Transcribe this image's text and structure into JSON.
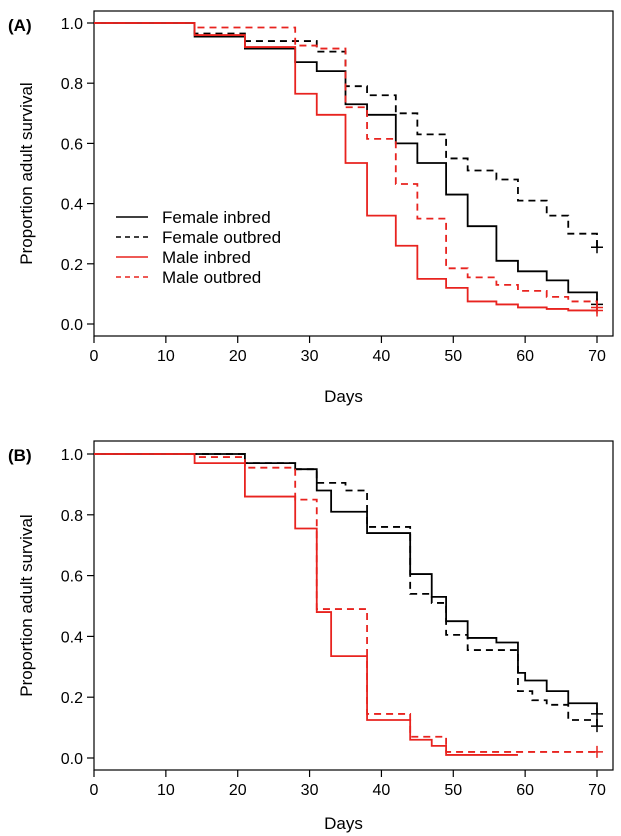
{
  "colors": {
    "inbred": "#000000",
    "outbred_black": "#000000",
    "male": "#e8231f"
  },
  "chart_data": [
    {
      "type": "line",
      "step": true,
      "panel_label": "(A)",
      "xlabel": "Days",
      "ylabel": "Proportion adult survival",
      "xlim": [
        0,
        73
      ],
      "ylim": [
        0,
        1
      ],
      "xticks": [
        "0",
        "10",
        "20",
        "30",
        "40",
        "50",
        "60",
        "70"
      ],
      "yticks": [
        "0.0",
        "0.2",
        "0.4",
        "0.6",
        "0.8",
        "1.0"
      ],
      "legend_position": "left",
      "series": [
        {
          "name": "Female inbred",
          "color": "#000000",
          "dash": false,
          "x": [
            0,
            14,
            21,
            28,
            31,
            35,
            38,
            42,
            45,
            49,
            52,
            56,
            59,
            63,
            66,
            70
          ],
          "y": [
            1.0,
            0.955,
            0.915,
            0.87,
            0.84,
            0.73,
            0.695,
            0.6,
            0.535,
            0.43,
            0.325,
            0.21,
            0.175,
            0.145,
            0.105,
            0.065
          ],
          "censor": [
            [
              70,
              0.065
            ]
          ]
        },
        {
          "name": "Female outbred",
          "color": "#000000",
          "dash": true,
          "x": [
            0,
            14,
            21,
            28,
            31,
            35,
            38,
            42,
            45,
            49,
            52,
            56,
            59,
            63,
            66,
            70
          ],
          "y": [
            1.0,
            0.965,
            0.94,
            0.94,
            0.905,
            0.79,
            0.76,
            0.7,
            0.63,
            0.55,
            0.51,
            0.48,
            0.41,
            0.36,
            0.3,
            0.255
          ],
          "censor": [
            [
              70,
              0.255
            ]
          ]
        },
        {
          "name": "Male inbred",
          "color": "#e8231f",
          "dash": false,
          "x": [
            0,
            14,
            21,
            28,
            31,
            35,
            38,
            42,
            45,
            49,
            52,
            56,
            59,
            63,
            66,
            70
          ],
          "y": [
            1.0,
            0.96,
            0.92,
            0.765,
            0.695,
            0.535,
            0.36,
            0.26,
            0.15,
            0.12,
            0.075,
            0.065,
            0.055,
            0.05,
            0.045,
            0.045
          ],
          "censor": [
            [
              70,
              0.045
            ]
          ]
        },
        {
          "name": "Male outbred",
          "color": "#e8231f",
          "dash": true,
          "x": [
            0,
            14,
            21,
            28,
            31,
            35,
            38,
            42,
            45,
            49,
            52,
            56,
            59,
            63,
            66,
            70
          ],
          "y": [
            1.0,
            0.985,
            0.985,
            0.925,
            0.915,
            0.72,
            0.615,
            0.465,
            0.35,
            0.185,
            0.155,
            0.13,
            0.11,
            0.09,
            0.075,
            0.055
          ],
          "censor": [
            [
              70,
              0.055
            ]
          ]
        }
      ]
    },
    {
      "type": "line",
      "step": true,
      "panel_label": "(B)",
      "xlabel": "Days",
      "ylabel": "Proportion adult survival",
      "xlim": [
        0,
        73
      ],
      "ylim": [
        0,
        1
      ],
      "xticks": [
        "0",
        "10",
        "20",
        "30",
        "40",
        "50",
        "60",
        "70"
      ],
      "yticks": [
        "0.0",
        "0.2",
        "0.4",
        "0.6",
        "0.8",
        "1.0"
      ],
      "series": [
        {
          "name": "Female inbred",
          "color": "#000000",
          "dash": false,
          "x": [
            0,
            21,
            28,
            31,
            33,
            38,
            44,
            47,
            49,
            52,
            56,
            59,
            60,
            63,
            66,
            70
          ],
          "y": [
            1.0,
            0.97,
            0.95,
            0.88,
            0.81,
            0.74,
            0.605,
            0.53,
            0.45,
            0.395,
            0.38,
            0.28,
            0.255,
            0.22,
            0.18,
            0.145
          ],
          "censor": [
            [
              70,
              0.145
            ]
          ]
        },
        {
          "name": "Female outbred",
          "color": "#000000",
          "dash": true,
          "x": [
            0,
            21,
            28,
            31,
            35,
            38,
            44,
            47,
            49,
            52,
            56,
            59,
            61,
            63,
            66,
            70
          ],
          "y": [
            1.0,
            0.97,
            0.95,
            0.905,
            0.88,
            0.76,
            0.54,
            0.51,
            0.405,
            0.355,
            0.355,
            0.22,
            0.19,
            0.175,
            0.125,
            0.105
          ],
          "censor": [
            [
              70,
              0.105
            ]
          ]
        },
        {
          "name": "Male inbred",
          "color": "#e8231f",
          "dash": false,
          "x": [
            0,
            14,
            21,
            28,
            31,
            33,
            38,
            44,
            47,
            49,
            59
          ],
          "y": [
            1.0,
            0.97,
            0.86,
            0.755,
            0.48,
            0.335,
            0.125,
            0.06,
            0.04,
            0.01,
            0.01
          ],
          "censor": []
        },
        {
          "name": "Male outbred",
          "color": "#e8231f",
          "dash": true,
          "x": [
            0,
            14,
            21,
            28,
            31,
            38,
            44,
            49,
            70
          ],
          "y": [
            1.0,
            0.99,
            0.955,
            0.85,
            0.49,
            0.145,
            0.07,
            0.02,
            0.02
          ],
          "censor": [
            [
              70,
              0.02
            ]
          ]
        }
      ]
    }
  ]
}
